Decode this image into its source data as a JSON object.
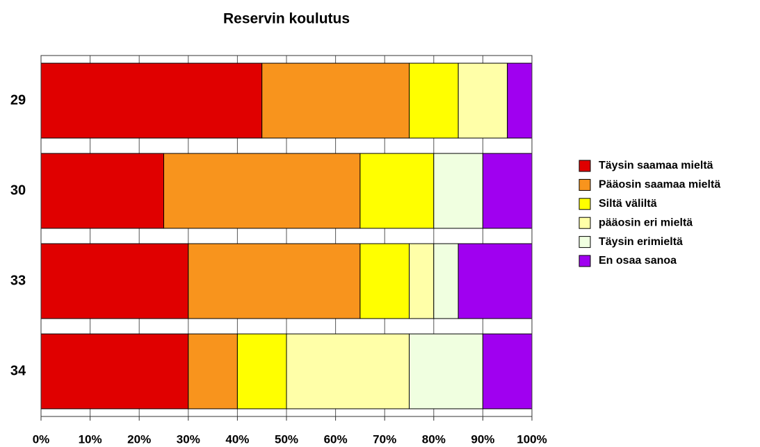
{
  "chart_data": {
    "type": "stacked-barh",
    "title": "Reservin koulutus",
    "categories": [
      "29",
      "30",
      "33",
      "34"
    ],
    "series": [
      {
        "name": "Täysin saamaa mieltä",
        "color": "#e00000",
        "values": [
          45,
          25,
          30,
          30
        ]
      },
      {
        "name": "Pääosin saamaa mieltä",
        "color": "#f8941d",
        "values": [
          30,
          40,
          35,
          10
        ]
      },
      {
        "name": "Siltä väliltä",
        "color": "#ffff00",
        "values": [
          10,
          15,
          10,
          10
        ]
      },
      {
        "name": "pääosin eri mieltä",
        "color": "#ffffa8",
        "values": [
          10,
          0,
          5,
          25
        ]
      },
      {
        "name": "Täysin erimieltä",
        "color": "#f0ffe0",
        "values": [
          0,
          10,
          5,
          15
        ]
      },
      {
        "name": "En osaa sanoa",
        "color": "#a000f0",
        "values": [
          5,
          10,
          15,
          10
        ]
      }
    ],
    "xlim": [
      0,
      100
    ],
    "xticks": [
      {
        "value": 0,
        "label": "0%"
      },
      {
        "value": 10,
        "label": "10%"
      },
      {
        "value": 20,
        "label": "20%"
      },
      {
        "value": 30,
        "label": "30%"
      },
      {
        "value": 40,
        "label": "40%"
      },
      {
        "value": 50,
        "label": "50%"
      },
      {
        "value": 60,
        "label": "60%"
      },
      {
        "value": 70,
        "label": "70%"
      },
      {
        "value": 80,
        "label": "80%"
      },
      {
        "value": 90,
        "label": "90%"
      },
      {
        "value": 100,
        "label": "100%"
      }
    ],
    "grid": true,
    "legend": "right"
  }
}
